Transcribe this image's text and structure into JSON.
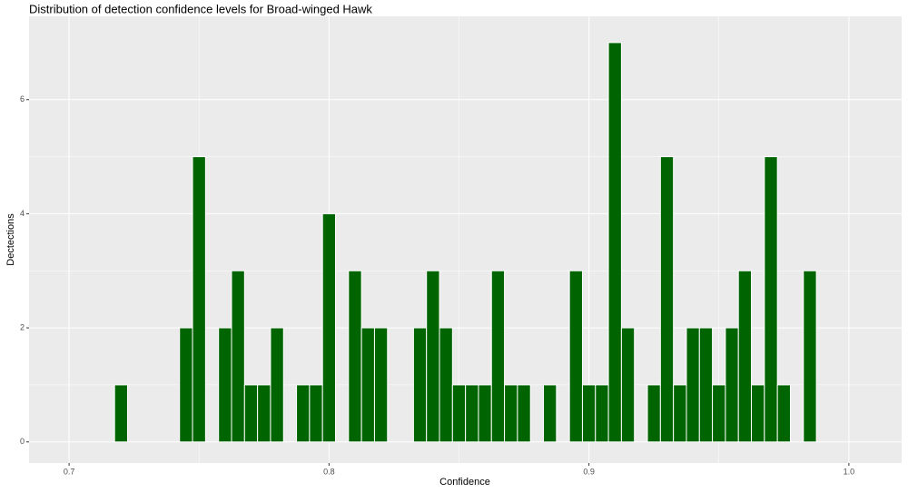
{
  "chart_data": {
    "type": "histogram",
    "title": "Distribution of detection confidence levels for Broad-winged Hawk",
    "x_label": "Confidence",
    "y_label": "Dectections",
    "bins": [
      0.7175,
      0.7225,
      0.7275,
      0.7325,
      0.7375,
      0.7425,
      0.7475,
      0.7525,
      0.7575,
      0.7625,
      0.7675,
      0.7725,
      0.7775,
      0.7825,
      0.7875,
      0.7925,
      0.7975,
      0.8025,
      0.8075,
      0.8125,
      0.8175,
      0.8225,
      0.8275,
      0.8325,
      0.8375,
      0.8425,
      0.8475,
      0.8525,
      0.8575,
      0.8625,
      0.8675,
      0.8725,
      0.8775,
      0.8825,
      0.8875,
      0.8925,
      0.8975,
      0.9025,
      0.9075,
      0.9125,
      0.9175,
      0.9225,
      0.9275,
      0.9325,
      0.9375,
      0.9425,
      0.9475,
      0.9525,
      0.9575,
      0.9625,
      0.9675,
      0.9725,
      0.9775,
      0.9825,
      0.9875
    ],
    "values": [
      1,
      0,
      0,
      0,
      0,
      2,
      5,
      0,
      2,
      3,
      1,
      1,
      2,
      0,
      1,
      1,
      4,
      0,
      3,
      2,
      2,
      0,
      0,
      2,
      3,
      2,
      1,
      1,
      1,
      3,
      1,
      1,
      0,
      1,
      0,
      3,
      1,
      1,
      7,
      2,
      0,
      1,
      5,
      1,
      2,
      2,
      1,
      2,
      3,
      1,
      5,
      1,
      0,
      3
    ],
    "color": "#006400",
    "xlim": [
      0.6846,
      1.0203
    ],
    "ylim": [
      -0.37,
      7.46
    ],
    "xticks": [
      0.7,
      0.8,
      0.9,
      {
        "value": 1.0,
        "label": "1.0"
      }
    ],
    "yticks": [
      0,
      2,
      4,
      6
    ],
    "grid": true
  }
}
